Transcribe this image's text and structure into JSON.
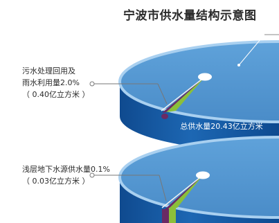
{
  "chart_data": {
    "type": "pie",
    "title": "宁波市供水量结构示意图",
    "total_label": "总供水量20.43亿立方米",
    "charts": [
      {
        "slices": [
          {
            "name": "污水处理回用及雨水利用量",
            "percent": 2.0,
            "volume": 0.4,
            "unit": "亿立方米",
            "color": "#8bbf3a"
          },
          {
            "name": "other",
            "percent": 0.7,
            "color": "#6a2a64"
          },
          {
            "name": "rest",
            "percent": 97.3,
            "color": "#4f92cd"
          }
        ]
      },
      {
        "slices": [
          {
            "name": "浅层地下水源供水量",
            "percent": 0.1,
            "volume": 0.03,
            "unit": "亿立方米",
            "color": "#6a2a64"
          },
          {
            "name": "other",
            "percent": 2.0,
            "color": "#8bbf3a"
          },
          {
            "name": "rest",
            "percent": 97.9,
            "color": "#4f92cd"
          }
        ]
      }
    ],
    "annotations": [
      {
        "line1": "污水处理回用及",
        "line2": "雨水利用量2.0%",
        "line3": "（ 0.40亿立方米 ）"
      },
      {
        "line1": "浅层地下水源供水量0.1%",
        "line2": "（ 0.03亿立方米 ）"
      }
    ]
  }
}
